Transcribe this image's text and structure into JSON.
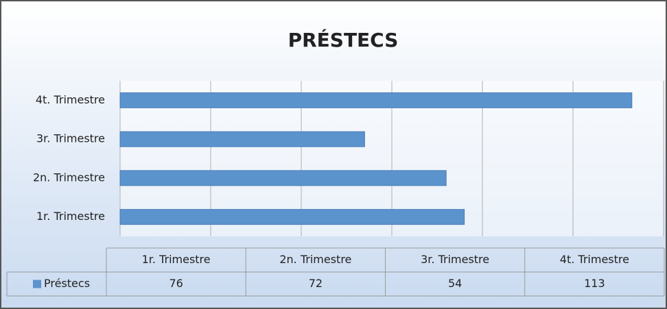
{
  "chart_data": {
    "type": "bar",
    "orientation": "horizontal",
    "title": "PRÉSTECS",
    "categories": [
      "1r. Trimestre",
      "2n. Trimestre",
      "3r. Trimestre",
      "4t. Trimestre"
    ],
    "series": [
      {
        "name": "Préstecs",
        "color": "#5b93cd",
        "values": [
          76,
          72,
          54,
          113
        ]
      }
    ],
    "xlim": [
      0,
      120
    ],
    "xticks": [
      0,
      20,
      40,
      60,
      80,
      100,
      120
    ],
    "grid": true,
    "data_table": true
  }
}
